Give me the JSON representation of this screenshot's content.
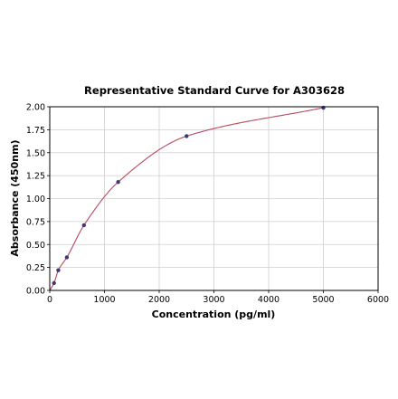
{
  "chart_data": {
    "type": "scatter",
    "title": "Representative Standard Curve for A303628",
    "xlabel": "Concentration (pg/ml)",
    "ylabel": "Absorbance (450nm)",
    "xlim": [
      0,
      6000
    ],
    "ylim": [
      0,
      2.0
    ],
    "xticks": [
      "0",
      "1000",
      "2000",
      "3000",
      "4000",
      "5000",
      "6000"
    ],
    "yticks": [
      "0.00",
      "0.25",
      "0.50",
      "0.75",
      "1.00",
      "1.25",
      "1.50",
      "1.75",
      "2.00"
    ],
    "grid": true,
    "series": [
      {
        "kind": "points",
        "x": [
          78,
          156,
          312,
          625,
          1250,
          2500,
          5000
        ],
        "y": [
          0.08,
          0.22,
          0.36,
          0.71,
          1.18,
          1.68,
          1.99
        ],
        "color": "#3a3a78"
      },
      {
        "kind": "fitted-curve",
        "color": "#b84a5e"
      }
    ]
  }
}
